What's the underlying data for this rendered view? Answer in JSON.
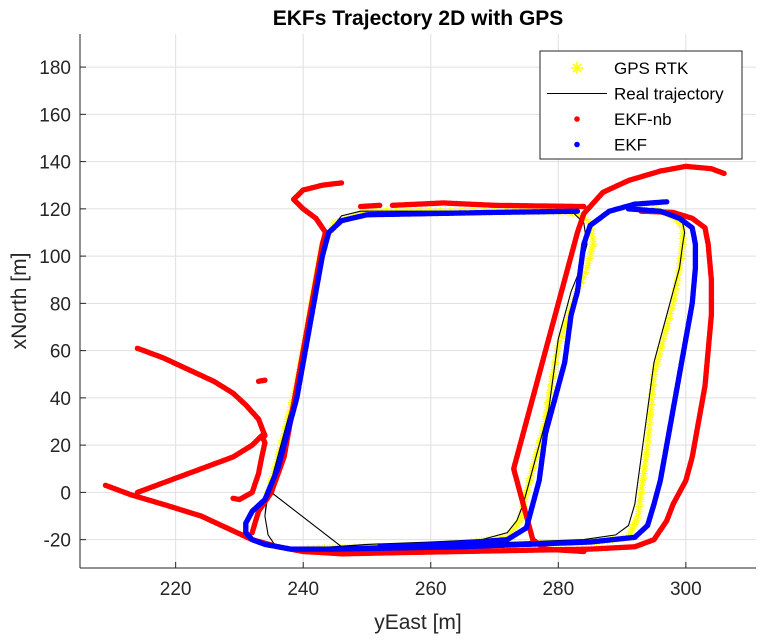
{
  "chart_data": {
    "type": "line",
    "title": "EKFs Trajectory 2D with GPS",
    "xlabel": "yEast [m]",
    "ylabel": "xNorth [m]",
    "xlim": [
      205,
      311
    ],
    "ylim": [
      -32,
      194
    ],
    "xticks": [
      220,
      240,
      260,
      280,
      300
    ],
    "yticks": [
      -20,
      0,
      20,
      40,
      60,
      80,
      100,
      120,
      140,
      160,
      180
    ],
    "grid": true,
    "legend_position": "top-right",
    "series": [
      {
        "name": "GPS RTK",
        "style": "asterisk-markers",
        "color": "#ffff00",
        "points": [
          [
            234.5,
            0
          ],
          [
            236,
            14
          ],
          [
            237.5,
            30
          ],
          [
            239,
            46
          ],
          [
            240,
            60
          ],
          [
            241,
            75
          ],
          [
            242,
            90
          ],
          [
            243,
            104
          ],
          [
            245,
            114
          ],
          [
            250,
            119
          ],
          [
            260,
            119
          ],
          [
            270,
            119
          ],
          [
            280,
            119
          ],
          [
            283,
            118
          ],
          [
            285,
            114
          ],
          [
            285.5,
            105
          ],
          [
            284.5,
            95
          ],
          [
            283,
            85
          ],
          [
            282,
            78
          ],
          [
            281,
            70
          ],
          [
            280,
            62
          ],
          [
            279.5,
            55
          ],
          [
            279,
            47
          ],
          [
            278.5,
            40
          ],
          [
            278,
            30
          ],
          [
            277,
            20
          ],
          [
            276,
            10
          ],
          [
            275,
            0
          ],
          [
            274,
            -12
          ],
          [
            272,
            -19
          ],
          [
            264,
            -22
          ],
          [
            255,
            -23
          ],
          [
            245,
            -23.5
          ],
          [
            240,
            -24
          ],
          [
            250,
            -23.5
          ],
          [
            262,
            -23
          ],
          [
            274,
            -22
          ],
          [
            286,
            -21
          ],
          [
            291,
            -19
          ],
          [
            292.5,
            -10
          ],
          [
            293,
            0
          ],
          [
            293.5,
            10
          ],
          [
            294,
            20
          ],
          [
            294.5,
            35
          ],
          [
            295,
            50
          ],
          [
            296.5,
            65
          ],
          [
            298,
            80
          ],
          [
            299,
            95
          ],
          [
            299.5,
            105
          ],
          [
            299.5,
            112
          ],
          [
            298,
            117
          ],
          [
            295,
            120
          ]
        ]
      },
      {
        "name": "Real trajectory",
        "style": "line",
        "color": "#000000",
        "points": [
          [
            234,
            -10
          ],
          [
            234.5,
            0
          ],
          [
            236,
            15
          ],
          [
            237.5,
            30
          ],
          [
            239,
            45
          ],
          [
            240.5,
            60
          ],
          [
            241.5,
            75
          ],
          [
            242.5,
            90
          ],
          [
            243.5,
            105
          ],
          [
            244.5,
            112
          ],
          [
            246,
            117
          ],
          [
            249,
            119
          ],
          [
            260,
            119
          ],
          [
            270,
            119
          ],
          [
            280,
            119
          ],
          [
            282.5,
            118
          ],
          [
            284,
            114
          ],
          [
            284.5,
            105
          ],
          [
            283.5,
            95
          ],
          [
            282,
            85
          ],
          [
            281,
            75
          ],
          [
            280,
            65
          ],
          [
            279.5,
            55
          ],
          [
            279,
            45
          ],
          [
            278.5,
            35
          ],
          [
            277.5,
            25
          ],
          [
            276.5,
            15
          ],
          [
            275.5,
            5
          ],
          [
            274.5,
            -5
          ],
          [
            273.5,
            -12
          ],
          [
            272,
            -17
          ],
          [
            268,
            -20
          ],
          [
            260,
            -21
          ],
          [
            250,
            -22
          ],
          [
            242,
            -23.5
          ],
          [
            238,
            -24
          ],
          [
            235.5,
            -22
          ],
          [
            234.5,
            -18
          ],
          [
            234,
            -10
          ],
          [
            234.2,
            -5
          ],
          [
            235,
            0
          ],
          [
            246,
            -23
          ],
          [
            262,
            -22
          ],
          [
            274,
            -21
          ],
          [
            284,
            -20
          ],
          [
            289,
            -18
          ],
          [
            291,
            -14
          ],
          [
            292,
            -5
          ],
          [
            292.5,
            5
          ],
          [
            293,
            15
          ],
          [
            293.5,
            25
          ],
          [
            294,
            35
          ],
          [
            294.5,
            45
          ],
          [
            295,
            55
          ],
          [
            296,
            65
          ],
          [
            297,
            75
          ],
          [
            298,
            85
          ],
          [
            299,
            95
          ],
          [
            299.5,
            105
          ],
          [
            299.8,
            110
          ],
          [
            299.5,
            114
          ],
          [
            298,
            117
          ],
          [
            296,
            119
          ],
          [
            294,
            120
          ]
        ]
      },
      {
        "name": "EKF-nb",
        "style": "dots",
        "color": "#ff0000",
        "points": [
          [
            209,
            3
          ],
          [
            213,
            -1
          ],
          [
            218,
            -5
          ],
          [
            224,
            -10
          ],
          [
            228,
            -15
          ],
          [
            232,
            -20
          ],
          [
            236,
            -23
          ],
          [
            240,
            -25
          ],
          [
            246,
            -26
          ],
          [
            255,
            -25.5
          ],
          [
            265,
            -25
          ],
          [
            275,
            -24.5
          ],
          [
            285,
            -24
          ],
          [
            292,
            -23
          ],
          [
            295,
            -20
          ],
          [
            297,
            -12
          ],
          [
            298,
            -5
          ],
          [
            300,
            5
          ],
          [
            301,
            15
          ],
          [
            302,
            30
          ],
          [
            303,
            45
          ],
          [
            303.5,
            60
          ],
          [
            304,
            75
          ],
          [
            304,
            90
          ],
          [
            303.5,
            105
          ],
          [
            303,
            112
          ],
          [
            301,
            116
          ],
          [
            298,
            118.5
          ],
          [
            293,
            119
          ]
        ]
      },
      {
        "name": "EKF-nb segment 2",
        "legend": false,
        "style": "dots",
        "color": "#ff0000",
        "points": [
          [
            229,
            -2.5
          ],
          [
            230,
            -3
          ],
          [
            232,
            0
          ],
          [
            233,
            8
          ],
          [
            233.5,
            15
          ],
          [
            234,
            21
          ],
          [
            233.5,
            24
          ],
          [
            232,
            20
          ],
          [
            229,
            15
          ],
          [
            226,
            12
          ],
          [
            222,
            8
          ],
          [
            218,
            4
          ],
          [
            214,
            0
          ]
        ]
      },
      {
        "name": "EKF-nb segment 3",
        "legend": false,
        "style": "dots",
        "color": "#ff0000",
        "points": [
          [
            214,
            61
          ],
          [
            218,
            57
          ],
          [
            222,
            52
          ],
          [
            226,
            47
          ],
          [
            229,
            42
          ],
          [
            231,
            37
          ],
          [
            233,
            31
          ],
          [
            234,
            24
          ]
        ]
      },
      {
        "name": "EKF-nb segment 4",
        "legend": false,
        "style": "dots",
        "color": "#ff0000",
        "points": [
          [
            233,
            47
          ],
          [
            234,
            47.5
          ]
        ]
      },
      {
        "name": "EKF-nb segment 5",
        "legend": false,
        "style": "dots",
        "color": "#ff0000",
        "points": [
          [
            232,
            -17
          ],
          [
            233,
            -8
          ],
          [
            235,
            0
          ],
          [
            237,
            15
          ],
          [
            238,
            30
          ],
          [
            239,
            45
          ],
          [
            240,
            60
          ],
          [
            241,
            75
          ],
          [
            242,
            90
          ],
          [
            243,
            105
          ],
          [
            243.5,
            110
          ],
          [
            242,
            116
          ],
          [
            240,
            120
          ],
          [
            238.5,
            124
          ],
          [
            240,
            128
          ],
          [
            243,
            130
          ],
          [
            246,
            131
          ]
        ]
      },
      {
        "name": "EKF-nb segment 6",
        "legend": false,
        "style": "dots",
        "color": "#ff0000",
        "points": [
          [
            249,
            121
          ],
          [
            252,
            121.5
          ]
        ]
      },
      {
        "name": "EKF-nb segment 7",
        "legend": false,
        "style": "dots",
        "color": "#ff0000",
        "points": [
          [
            254,
            121.5
          ],
          [
            262,
            122.5
          ],
          [
            270,
            121.5
          ],
          [
            278,
            121.2
          ],
          [
            284,
            121
          ]
        ]
      },
      {
        "name": "EKF-nb segment 8",
        "legend": false,
        "style": "dots",
        "color": "#ff0000",
        "points": [
          [
            284,
            -25
          ],
          [
            278,
            -24
          ],
          [
            276,
            -20
          ],
          [
            275,
            -10
          ],
          [
            274,
            0
          ],
          [
            273,
            10
          ],
          [
            274,
            20
          ],
          [
            275,
            30
          ],
          [
            276,
            40
          ],
          [
            277,
            50
          ],
          [
            278,
            60
          ],
          [
            279,
            70
          ],
          [
            280,
            80
          ],
          [
            281,
            90
          ],
          [
            282,
            100
          ],
          [
            283,
            110
          ],
          [
            284,
            118
          ],
          [
            287,
            127
          ],
          [
            291,
            132
          ],
          [
            296,
            136
          ],
          [
            300,
            138
          ],
          [
            304,
            137
          ],
          [
            306,
            135
          ]
        ]
      },
      {
        "name": "EKF",
        "style": "dots",
        "color": "#0000ff",
        "points": [
          [
            234,
            -3
          ],
          [
            236,
            10
          ],
          [
            237.5,
            25
          ],
          [
            239,
            40
          ],
          [
            240,
            55
          ],
          [
            241,
            70
          ],
          [
            242,
            85
          ],
          [
            243,
            100
          ],
          [
            244,
            110
          ],
          [
            246,
            115
          ],
          [
            250,
            117.5
          ],
          [
            260,
            118
          ],
          [
            270,
            118.5
          ],
          [
            283,
            119
          ]
        ]
      },
      {
        "name": "EKF segment 2",
        "legend": false,
        "style": "dots",
        "color": "#0000ff",
        "points": [
          [
            234,
            -3
          ],
          [
            232,
            -8
          ],
          [
            231,
            -13
          ],
          [
            231,
            -17
          ],
          [
            232,
            -20
          ],
          [
            234,
            -22
          ],
          [
            238,
            -24
          ],
          [
            245,
            -24
          ],
          [
            255,
            -23.5
          ],
          [
            265,
            -23
          ],
          [
            275,
            -22
          ],
          [
            285,
            -21
          ],
          [
            292,
            -19
          ],
          [
            294,
            -14
          ],
          [
            295,
            -5
          ],
          [
            296,
            5
          ],
          [
            297,
            20
          ],
          [
            298,
            35
          ],
          [
            299,
            50
          ],
          [
            300,
            65
          ],
          [
            301,
            80
          ],
          [
            301.5,
            95
          ],
          [
            301.5,
            105
          ],
          [
            301,
            112
          ],
          [
            299,
            116
          ],
          [
            296,
            119
          ],
          [
            291,
            120
          ]
        ]
      },
      {
        "name": "EKF segment 3",
        "legend": false,
        "style": "dots",
        "color": "#0000ff",
        "points": [
          [
            252,
            -23
          ],
          [
            262,
            -22
          ],
          [
            272,
            -20
          ],
          [
            275,
            -15
          ],
          [
            276,
            -5
          ],
          [
            277,
            5
          ],
          [
            277.5,
            15
          ],
          [
            278,
            25
          ],
          [
            279,
            35
          ],
          [
            280,
            45
          ],
          [
            281,
            55
          ],
          [
            281.5,
            65
          ],
          [
            282,
            75
          ],
          [
            283,
            85
          ],
          [
            283.5,
            95
          ],
          [
            284,
            105
          ],
          [
            285,
            113
          ],
          [
            288,
            119
          ],
          [
            292,
            122
          ],
          [
            297,
            123
          ]
        ]
      }
    ]
  }
}
